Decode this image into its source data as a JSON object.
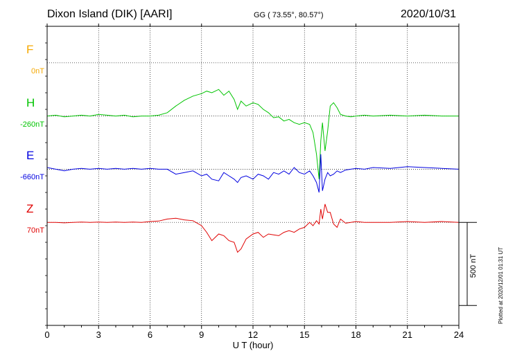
{
  "header": {
    "station": "Dixon Island (DIK)  [AARI]",
    "coords": "GG ( 73.55°,  80.57°)",
    "date": "2020/10/31"
  },
  "channels": [
    {
      "name": "F",
      "baseline": "0nT",
      "color": "#f5a800"
    },
    {
      "name": "H",
      "baseline": "-260nT",
      "color": "#00c400"
    },
    {
      "name": "E",
      "baseline": "-660nT",
      "color": "#0000e0"
    },
    {
      "name": "Z",
      "baseline": "70nT",
      "color": "#e00000"
    }
  ],
  "scale_label": "500 nT",
  "plotted_note": "Plotted at 2020/12/01 01:31  UT",
  "chart_data": {
    "type": "line",
    "title": "Dixon Island (DIK)  [AARI]",
    "xlabel": "U T (hour)",
    "ylabel": "",
    "xlim": [
      0,
      24
    ],
    "xticks": [
      "0",
      "3",
      "6",
      "9",
      "12",
      "15",
      "18",
      "21",
      "24"
    ],
    "ylim": [
      -500,
      1300
    ],
    "grid": true,
    "scale_bar_nT": 500,
    "series": [
      {
        "name": "F",
        "offset": 1080,
        "x": [],
        "values": []
      },
      {
        "name": "H",
        "offset": 760,
        "x": [
          0,
          0.5,
          1,
          1.5,
          2,
          2.5,
          3,
          3.5,
          4,
          4.5,
          5,
          5.5,
          6,
          6.5,
          7,
          7.5,
          8,
          8.5,
          9,
          9.3,
          9.6,
          10,
          10.3,
          10.6,
          10.9,
          11.1,
          11.3,
          11.6,
          12,
          12.3,
          12.6,
          12.9,
          13.2,
          13.5,
          13.8,
          14.1,
          14.4,
          14.7,
          15,
          15.3,
          15.5,
          15.7,
          15.85,
          15.95,
          16.05,
          16.2,
          16.35,
          16.5,
          16.7,
          16.9,
          17.1,
          17.4,
          17.7,
          18,
          18.5,
          19,
          20,
          21,
          22,
          23,
          24
        ],
        "values": [
          0,
          5,
          -5,
          0,
          5,
          0,
          10,
          5,
          0,
          5,
          -5,
          0,
          0,
          5,
          20,
          60,
          95,
          120,
          135,
          150,
          140,
          160,
          125,
          150,
          100,
          40,
          90,
          60,
          80,
          70,
          40,
          20,
          -10,
          -5,
          -30,
          -20,
          -40,
          -50,
          -40,
          -50,
          -100,
          -230,
          -380,
          -150,
          -40,
          -210,
          -90,
          60,
          80,
          50,
          10,
          0,
          -5,
          0,
          5,
          0,
          5,
          0,
          5,
          0,
          0
        ]
      },
      {
        "name": "E",
        "offset": 440,
        "x": [
          0,
          0.5,
          1,
          1.5,
          2,
          2.5,
          3,
          3.5,
          4,
          4.5,
          5,
          5.5,
          6,
          6.5,
          7,
          7.5,
          8,
          8.5,
          9,
          9.3,
          9.6,
          10,
          10.3,
          10.6,
          10.9,
          11.1,
          11.3,
          11.6,
          12,
          12.3,
          12.6,
          12.9,
          13.2,
          13.5,
          13.8,
          14.1,
          14.4,
          14.7,
          15,
          15.3,
          15.5,
          15.7,
          15.85,
          15.95,
          16.05,
          16.2,
          16.35,
          16.5,
          16.7,
          16.9,
          17.1,
          17.4,
          17.7,
          18,
          18.5,
          19,
          20,
          21,
          22,
          23,
          24
        ],
        "values": [
          10,
          0,
          -10,
          0,
          5,
          0,
          5,
          0,
          5,
          0,
          5,
          0,
          5,
          0,
          0,
          -30,
          -20,
          -10,
          -40,
          -30,
          -60,
          -70,
          -20,
          -40,
          -60,
          -80,
          -50,
          -40,
          -60,
          -30,
          -40,
          -60,
          -20,
          -30,
          -10,
          -30,
          10,
          -20,
          -30,
          -10,
          -40,
          -80,
          -140,
          90,
          -130,
          -60,
          -20,
          -40,
          -30,
          -10,
          -20,
          -5,
          0,
          5,
          0,
          10,
          5,
          15,
          10,
          5,
          0
        ]
      },
      {
        "name": "Z",
        "offset": 120,
        "x": [
          0,
          0.5,
          1,
          1.5,
          2,
          2.5,
          3,
          3.5,
          4,
          4.5,
          5,
          5.5,
          6,
          6.5,
          7,
          7.5,
          8,
          8.5,
          9,
          9.3,
          9.6,
          10,
          10.3,
          10.6,
          10.9,
          11.1,
          11.3,
          11.6,
          12,
          12.3,
          12.6,
          12.9,
          13.2,
          13.5,
          13.8,
          14.1,
          14.4,
          14.7,
          15,
          15.3,
          15.5,
          15.7,
          15.85,
          15.95,
          16.05,
          16.2,
          16.35,
          16.5,
          16.7,
          16.9,
          17.1,
          17.4,
          17.7,
          18,
          18.5,
          19,
          20,
          21,
          22,
          23,
          24
        ],
        "values": [
          0,
          0,
          -3,
          0,
          2,
          0,
          2,
          0,
          2,
          0,
          2,
          0,
          5,
          8,
          20,
          25,
          15,
          10,
          -20,
          -60,
          -110,
          -70,
          -80,
          -110,
          -120,
          -180,
          -160,
          -100,
          -70,
          -60,
          -90,
          -70,
          -75,
          -80,
          -60,
          -50,
          -60,
          -40,
          -30,
          0,
          -20,
          10,
          -10,
          80,
          20,
          110,
          60,
          60,
          -10,
          -30,
          20,
          -5,
          0,
          5,
          0,
          0,
          0,
          5,
          0,
          5,
          0
        ]
      }
    ]
  }
}
